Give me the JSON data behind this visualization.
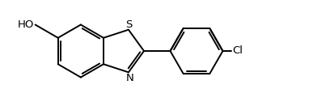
{
  "background_color": "#ffffff",
  "line_color": "#000000",
  "line_width": 1.4,
  "font_size": 9.5,
  "label_S": "S",
  "label_N": "N",
  "label_HO": "HO",
  "label_Cl": "Cl",
  "figw": 3.87,
  "figh": 1.26,
  "dpi": 100,
  "xlim": [
    0,
    10
  ],
  "ylim": [
    0,
    3.26
  ]
}
